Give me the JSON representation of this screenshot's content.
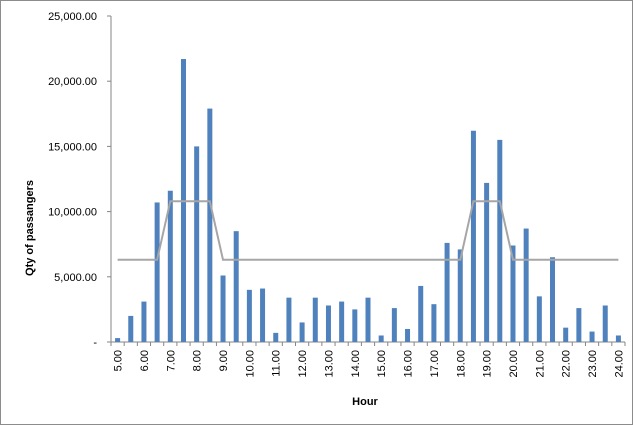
{
  "chart_data": {
    "type": "bar",
    "title": "",
    "xlabel": "Hour",
    "ylabel": "Qty of passangers",
    "ylim": [
      0,
      25000
    ],
    "yticks": [
      0,
      5000,
      10000,
      15000,
      20000,
      25000
    ],
    "ytick_labels": [
      "-",
      "5,000.00",
      "10,000.00",
      "15,000.00",
      "20,000.00",
      "25,000.00"
    ],
    "x_start_hour": 5,
    "x_end_hour": 24,
    "bars_per_hour": 2,
    "xtick_labels": [
      "5.00",
      "6.00",
      "7.00",
      "8.00",
      "9.00",
      "10.00",
      "11.00",
      "12.00",
      "13.00",
      "14.00",
      "15.00",
      "16.00",
      "17.00",
      "18.00",
      "19.00",
      "20.00",
      "21.00",
      "22.00",
      "23.00",
      "24.00"
    ],
    "grid": false,
    "legend": "none",
    "series": [
      {
        "color": "#4f81bd",
        "values": [
          300,
          2000,
          3100,
          10700,
          11600,
          21700,
          15000,
          17900,
          5100,
          8500,
          4000,
          4100,
          700,
          3400,
          1500,
          3400,
          2800,
          3100,
          2500,
          3400,
          500,
          2600,
          1000,
          4300,
          2900,
          7600,
          7100,
          16200,
          12200,
          15500,
          7400,
          8700,
          3500,
          6500,
          1100,
          2600,
          800,
          2800,
          500
        ]
      },
      {
        "type": "line",
        "color": "#a6a6a6",
        "values": [
          6300,
          6300,
          6300,
          6300,
          10800,
          10800,
          10800,
          10800,
          6300,
          6300,
          6300,
          6300,
          6300,
          6300,
          6300,
          6300,
          6300,
          6300,
          6300,
          6300,
          6300,
          6300,
          6300,
          6300,
          6300,
          6300,
          6300,
          10800,
          10800,
          10800,
          6300,
          6300,
          6300,
          6300,
          6300,
          6300,
          6300,
          6300,
          6300
        ]
      }
    ]
  }
}
